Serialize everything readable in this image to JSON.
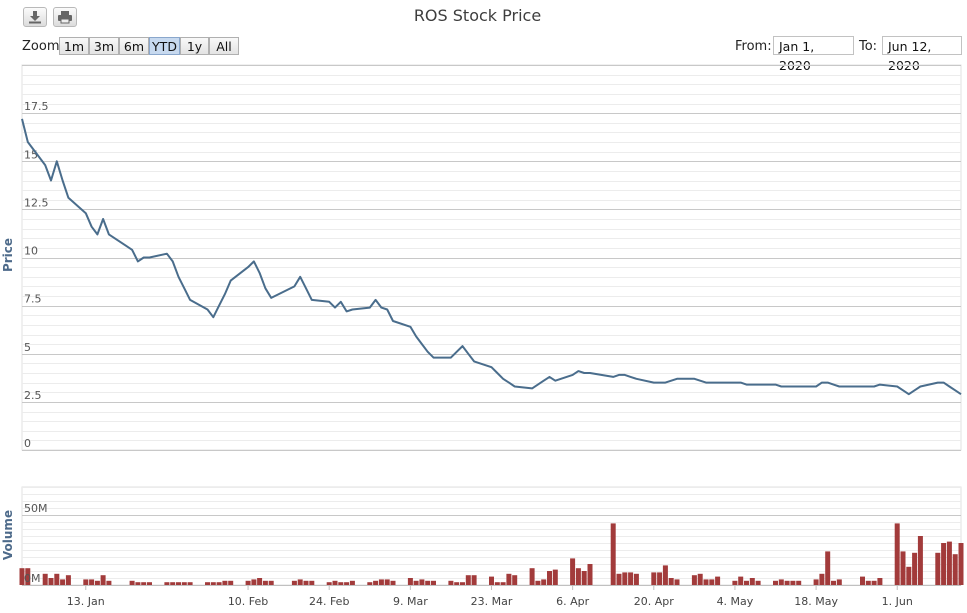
{
  "chart": {
    "title": "ROS Stock Price"
  },
  "toolbar": {
    "download_icon": "download-icon",
    "print_icon": "print-icon"
  },
  "range_selector": {
    "zoom_label": "Zoom",
    "buttons": [
      {
        "label": "1m"
      },
      {
        "label": "3m"
      },
      {
        "label": "6m"
      },
      {
        "label": "YTD",
        "active": true
      },
      {
        "label": "1y"
      },
      {
        "label": "All"
      }
    ],
    "from_label": "From:",
    "from_value": "Jan 1, 2020",
    "to_label": "To:",
    "to_value": "Jun 12, 2020"
  },
  "colors": {
    "price_line": "#4a6d8c",
    "volume_bar": "#a23b3b",
    "active_zoom": "#c7d9ef"
  },
  "chart_data": [
    {
      "type": "line",
      "ylabel": "Price",
      "ylim": [
        0,
        17.5
      ],
      "yticks": [
        "0",
        "2.5",
        "5",
        "7.5",
        "10",
        "12.5",
        "15",
        "17.5"
      ],
      "x": [
        "2020-01-02",
        "2020-01-03",
        "2020-01-06",
        "2020-01-07",
        "2020-01-08",
        "2020-01-09",
        "2020-01-10",
        "2020-01-13",
        "2020-01-14",
        "2020-01-15",
        "2020-01-16",
        "2020-01-17",
        "2020-01-21",
        "2020-01-22",
        "2020-01-23",
        "2020-01-24",
        "2020-01-27",
        "2020-01-28",
        "2020-01-29",
        "2020-01-30",
        "2020-01-31",
        "2020-02-03",
        "2020-02-04",
        "2020-02-05",
        "2020-02-06",
        "2020-02-07",
        "2020-02-10",
        "2020-02-11",
        "2020-02-12",
        "2020-02-13",
        "2020-02-14",
        "2020-02-18",
        "2020-02-19",
        "2020-02-20",
        "2020-02-21",
        "2020-02-24",
        "2020-02-25",
        "2020-02-26",
        "2020-02-27",
        "2020-02-28",
        "2020-03-02",
        "2020-03-03",
        "2020-03-04",
        "2020-03-05",
        "2020-03-06",
        "2020-03-09",
        "2020-03-10",
        "2020-03-11",
        "2020-03-12",
        "2020-03-13",
        "2020-03-16",
        "2020-03-17",
        "2020-03-18",
        "2020-03-19",
        "2020-03-20",
        "2020-03-23",
        "2020-03-24",
        "2020-03-25",
        "2020-03-26",
        "2020-03-27",
        "2020-03-30",
        "2020-03-31",
        "2020-04-01",
        "2020-04-02",
        "2020-04-03",
        "2020-04-06",
        "2020-04-07",
        "2020-04-08",
        "2020-04-09",
        "2020-04-13",
        "2020-04-14",
        "2020-04-15",
        "2020-04-16",
        "2020-04-17",
        "2020-04-20",
        "2020-04-21",
        "2020-04-22",
        "2020-04-23",
        "2020-04-24",
        "2020-04-27",
        "2020-04-28",
        "2020-04-29",
        "2020-04-30",
        "2020-05-01",
        "2020-05-04",
        "2020-05-05",
        "2020-05-06",
        "2020-05-07",
        "2020-05-08",
        "2020-05-11",
        "2020-05-12",
        "2020-05-13",
        "2020-05-14",
        "2020-05-15",
        "2020-05-18",
        "2020-05-19",
        "2020-05-20",
        "2020-05-21",
        "2020-05-22",
        "2020-05-26",
        "2020-05-27",
        "2020-05-28",
        "2020-05-29",
        "2020-06-01",
        "2020-06-02",
        "2020-06-03",
        "2020-06-04",
        "2020-06-05",
        "2020-06-08",
        "2020-06-09",
        "2020-06-10",
        "2020-06-11",
        "2020-06-12"
      ],
      "y": [
        17.2,
        16.0,
        14.8,
        14.0,
        15.0,
        14.0,
        13.1,
        12.3,
        11.6,
        11.2,
        12.0,
        11.2,
        10.4,
        9.8,
        10.0,
        10.0,
        10.2,
        9.8,
        9.0,
        8.4,
        7.8,
        7.3,
        6.9,
        7.5,
        8.1,
        8.8,
        9.5,
        9.8,
        9.2,
        8.4,
        7.9,
        8.5,
        9.0,
        8.4,
        7.8,
        7.7,
        7.4,
        7.7,
        7.2,
        7.3,
        7.4,
        7.8,
        7.4,
        7.3,
        6.7,
        6.4,
        5.9,
        5.5,
        5.1,
        4.8,
        4.8,
        5.1,
        5.4,
        5.0,
        4.6,
        4.3,
        4.0,
        3.7,
        3.5,
        3.3,
        3.2,
        3.4,
        3.6,
        3.8,
        3.6,
        3.9,
        4.1,
        4.0,
        4.0,
        3.8,
        3.9,
        3.9,
        3.8,
        3.7,
        3.5,
        3.5,
        3.5,
        3.6,
        3.7,
        3.7,
        3.6,
        3.5,
        3.5,
        3.5,
        3.5,
        3.5,
        3.4,
        3.4,
        3.4,
        3.4,
        3.3,
        3.3,
        3.3,
        3.3,
        3.3,
        3.5,
        3.5,
        3.4,
        3.3,
        3.3,
        3.3,
        3.3,
        3.4,
        3.3,
        3.1,
        2.9,
        3.1,
        3.3,
        3.5,
        3.5,
        3.3,
        3.1,
        2.9
      ]
    },
    {
      "type": "bar",
      "ylabel": "Volume",
      "yticks": [
        "0M",
        "50M"
      ],
      "ylim_millions": [
        0,
        70
      ],
      "x_tick_labels": [
        "13. Jan",
        "10. Feb",
        "24. Feb",
        "9. Mar",
        "23. Mar",
        "6. Apr",
        "20. Apr",
        "4. May",
        "18. May",
        "1. Jun"
      ],
      "x_tick_dates": [
        "2020-01-13",
        "2020-02-10",
        "2020-02-24",
        "2020-03-09",
        "2020-03-23",
        "2020-04-06",
        "2020-04-20",
        "2020-05-04",
        "2020-05-18",
        "2020-06-01"
      ],
      "values_millions": [
        12,
        12,
        8,
        5,
        8,
        4,
        7,
        4,
        4,
        3,
        7,
        3,
        3,
        2,
        2,
        2,
        2,
        2,
        2,
        2,
        2,
        2,
        2,
        2,
        3,
        3,
        3,
        4,
        5,
        3,
        3,
        3,
        4,
        3,
        3,
        2,
        3,
        2,
        2,
        3,
        2,
        3,
        4,
        4,
        3,
        5,
        3,
        4,
        3,
        3,
        3,
        2,
        2,
        7,
        7,
        6,
        2,
        2,
        8,
        7,
        12,
        3,
        4,
        10,
        11,
        19,
        12,
        10,
        15,
        44,
        8,
        9,
        9,
        8,
        9,
        9,
        14,
        5,
        4,
        7,
        8,
        4,
        4,
        6,
        3,
        6,
        3,
        5,
        3,
        3,
        4,
        3,
        3,
        3,
        4,
        8,
        24,
        3,
        4,
        6,
        3,
        3,
        5,
        44,
        24,
        13,
        23,
        35,
        23,
        30,
        31,
        22,
        30
      ]
    }
  ]
}
